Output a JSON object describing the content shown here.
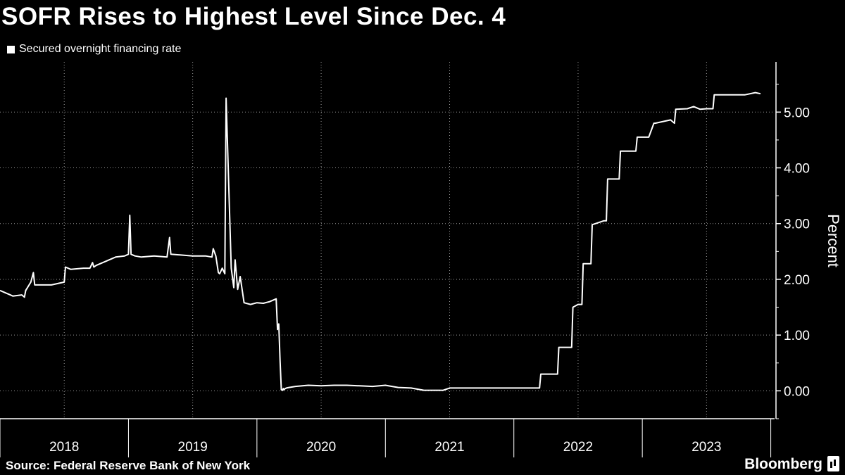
{
  "chart_data": {
    "type": "line",
    "title": "SOFR Rises to Highest Level Since Dec. 4",
    "ylabel": "Percent",
    "ylim": [
      -0.5,
      5.9
    ],
    "xlim": [
      2018.0,
      2023.92
    ],
    "y_ticks": [
      0,
      1,
      2,
      3,
      4,
      5
    ],
    "y_tick_labels": [
      "0.00",
      "1.00",
      "2.00",
      "3.00",
      "4.00",
      "5.00"
    ],
    "x_tick_labels": [
      "2018",
      "2019",
      "2020",
      "2021",
      "2022",
      "2023"
    ],
    "x_year_starts": [
      2018,
      2019,
      2020,
      2021,
      2022,
      2023,
      2024
    ],
    "x_extra_gridlines": [
      2018.5,
      2019.5,
      2020.5,
      2021.5,
      2022.5,
      2023.5
    ],
    "grid": true,
    "legend": "top-left",
    "series": [
      {
        "name": "Secured overnight financing rate",
        "x": [
          2018.0,
          2018.08,
          2018.1,
          2018.17,
          2018.19,
          2018.2,
          2018.24,
          2018.26,
          2018.27,
          2018.3,
          2018.4,
          2018.5,
          2018.51,
          2018.55,
          2018.65,
          2018.7,
          2018.72,
          2018.73,
          2018.75,
          2018.8,
          2018.9,
          2018.97,
          2019.0,
          2019.01,
          2019.02,
          2019.05,
          2019.1,
          2019.2,
          2019.3,
          2019.32,
          2019.33,
          2019.5,
          2019.6,
          2019.65,
          2019.66,
          2019.68,
          2019.7,
          2019.71,
          2019.72,
          2019.73,
          2019.75,
          2019.76,
          2019.8,
          2019.82,
          2019.83,
          2019.85,
          2019.87,
          2019.9,
          2019.95,
          2020.0,
          2020.05,
          2020.1,
          2020.15,
          2020.16,
          2020.17,
          2020.18,
          2020.19,
          2020.2,
          2020.205,
          2020.21,
          2020.22,
          2020.23,
          2020.25,
          2020.3,
          2020.4,
          2020.5,
          2020.6,
          2020.7,
          2020.8,
          2020.9,
          2021.0,
          2021.1,
          2021.2,
          2021.3,
          2021.45,
          2021.5,
          2021.8,
          2022.0,
          2022.1,
          2022.2,
          2022.21,
          2022.3,
          2022.34,
          2022.35,
          2022.45,
          2022.46,
          2022.5,
          2022.53,
          2022.54,
          2022.6,
          2022.61,
          2022.7,
          2022.72,
          2022.73,
          2022.82,
          2022.83,
          2022.95,
          2022.96,
          2023.05,
          2023.09,
          2023.1,
          2023.22,
          2023.25,
          2023.26,
          2023.35,
          2023.4,
          2023.45,
          2023.5,
          2023.55,
          2023.56,
          2023.8,
          2023.88,
          2023.92
        ],
        "values": [
          1.8,
          1.72,
          1.7,
          1.72,
          1.68,
          1.8,
          1.95,
          2.12,
          1.9,
          1.9,
          1.9,
          1.95,
          2.22,
          2.18,
          2.2,
          2.2,
          2.3,
          2.22,
          2.25,
          2.3,
          2.4,
          2.42,
          2.45,
          3.15,
          2.45,
          2.42,
          2.4,
          2.42,
          2.4,
          2.75,
          2.45,
          2.42,
          2.42,
          2.4,
          2.55,
          2.42,
          2.12,
          2.1,
          2.15,
          2.2,
          2.1,
          5.25,
          2.2,
          1.85,
          2.35,
          1.82,
          2.05,
          1.58,
          1.55,
          1.58,
          1.57,
          1.6,
          1.65,
          1.1,
          1.2,
          0.55,
          0.02,
          0.01,
          0.04,
          0.02,
          0.04,
          0.05,
          0.06,
          0.08,
          0.1,
          0.09,
          0.1,
          0.1,
          0.09,
          0.08,
          0.1,
          0.06,
          0.05,
          0.01,
          0.01,
          0.05,
          0.05,
          0.05,
          0.05,
          0.05,
          0.3,
          0.3,
          0.3,
          0.78,
          0.78,
          1.5,
          1.55,
          1.55,
          2.28,
          2.28,
          2.98,
          3.05,
          3.05,
          3.8,
          3.8,
          4.3,
          4.3,
          4.55,
          4.55,
          4.8,
          4.8,
          4.86,
          4.8,
          5.05,
          5.06,
          5.1,
          5.05,
          5.06,
          5.06,
          5.31,
          5.31,
          5.35,
          5.33
        ]
      }
    ],
    "source": "Source: Federal Reserve Bank of New York",
    "brand": "Bloomberg",
    "colors": {
      "background": "#000000",
      "line": "#ffffff",
      "grid": "#9a9a9a",
      "text": "#ffffff"
    }
  }
}
